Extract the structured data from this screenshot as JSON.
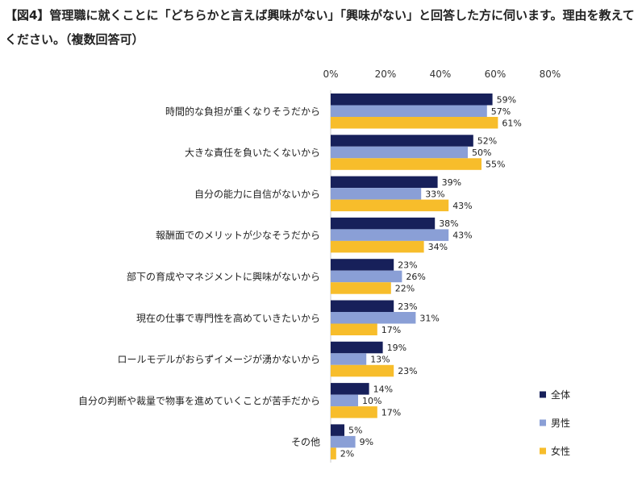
{
  "title": "【図4】管理職に就くことに「どちらかと言えば興味がない」「興味がない」と回答した方に伺います。理由を教えてください。（複数回答可）",
  "colors": {
    "全体": "#17205a",
    "男性": "#8a9fd6",
    "女性": "#f7bd2b"
  },
  "chart_data": {
    "type": "bar",
    "orientation": "horizontal",
    "title": "【図4】管理職に就くことに「どちらかと言えば興味がない」「興味がない」と回答した方に伺います。理由を教えてください。（複数回答可）",
    "xlim": [
      0,
      80
    ],
    "ticks": [
      "0%",
      "20%",
      "40%",
      "60%",
      "80%"
    ],
    "grid": false,
    "legend_position": "bottom-right",
    "unit": "%",
    "categories": [
      "時間的な負担が重くなりそうだから",
      "大きな責任を負いたくないから",
      "自分の能力に自信がないから",
      "報酬面でのメリットが少なそうだから",
      "部下の育成やマネジメントに興味がないから",
      "現在の仕事で専門性を高めていきたいから",
      "ロールモデルがおらずイメージが湧かないから",
      "自分の判断や裁量で物事を進めていくことが苦手だから",
      "その他"
    ],
    "series": [
      {
        "name": "全体",
        "values": [
          59,
          52,
          39,
          38,
          23,
          23,
          19,
          14,
          5
        ]
      },
      {
        "name": "男性",
        "values": [
          57,
          50,
          33,
          43,
          26,
          31,
          13,
          10,
          9
        ]
      },
      {
        "name": "女性",
        "values": [
          61,
          55,
          43,
          34,
          22,
          17,
          23,
          17,
          2
        ]
      }
    ]
  }
}
